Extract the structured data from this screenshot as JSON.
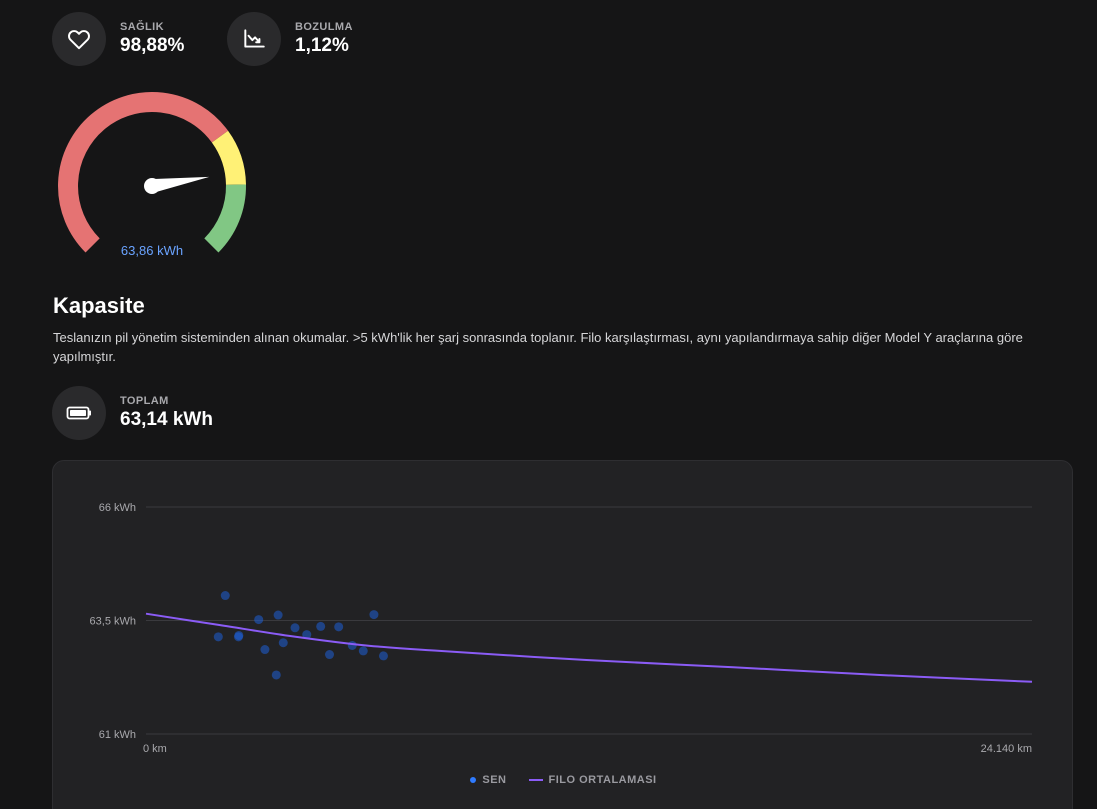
{
  "stats": {
    "health": {
      "label": "SAĞLIK",
      "value": "98,88%",
      "icon": "heart-icon"
    },
    "degradation": {
      "label": "BOZULMA",
      "value": "1,12%",
      "icon": "chart-down-icon"
    },
    "total": {
      "label": "TOPLAM",
      "value": "63,14 kWh",
      "icon": "battery-icon"
    }
  },
  "gauge": {
    "value_label": "63,86 kWh",
    "level": 0.8,
    "colors": {
      "red": "#e57373",
      "yellow": "#fff176",
      "green": "#81c784"
    }
  },
  "section": {
    "title": "Kapasite",
    "description": "Teslanızın pil yönetim sisteminden alınan okumalar. >5 kWh'lik her şarj sonrasında toplanır. Filo karşılaştırması, aynı yapılandırmaya sahip diğer Model Y araçlarına göre yapılmıştır."
  },
  "chart_data": {
    "type": "scatter",
    "x_unit": "km",
    "y_unit": "kWh",
    "xlim": [
      0,
      24140
    ],
    "ylim": [
      61,
      66
    ],
    "x_tick_labels": [
      "0 km",
      "24.140 km"
    ],
    "y_tick_labels": [
      "66 kWh",
      "63,5 kWh",
      "61 kWh"
    ],
    "y_ticks": [
      66,
      63.5,
      61
    ],
    "grid": true,
    "legend_position": "bottom",
    "series": [
      {
        "name": "SEN",
        "kind": "points",
        "color": "#1d5fd6",
        "points": [
          [
            1970,
            63.14
          ],
          [
            2160,
            64.05
          ],
          [
            2530,
            63.17
          ],
          [
            2520,
            63.14
          ],
          [
            3070,
            63.52
          ],
          [
            3240,
            62.86
          ],
          [
            3550,
            62.3
          ],
          [
            3600,
            63.62
          ],
          [
            3740,
            63.01
          ],
          [
            4060,
            63.34
          ],
          [
            4380,
            63.19
          ],
          [
            4760,
            63.37
          ],
          [
            5000,
            62.75
          ],
          [
            5250,
            63.36
          ],
          [
            5620,
            62.95
          ],
          [
            5920,
            62.83
          ],
          [
            6210,
            63.63
          ],
          [
            6470,
            62.72
          ]
        ]
      },
      {
        "name": "FILO ORTALAMASI",
        "kind": "line",
        "color": "#8b5cf6",
        "points": [
          [
            0,
            63.65
          ],
          [
            2000,
            63.4
          ],
          [
            4000,
            63.15
          ],
          [
            6000,
            62.95
          ],
          [
            8000,
            62.83
          ],
          [
            12000,
            62.63
          ],
          [
            16000,
            62.47
          ],
          [
            20000,
            62.3
          ],
          [
            24140,
            62.15
          ]
        ]
      }
    ]
  }
}
